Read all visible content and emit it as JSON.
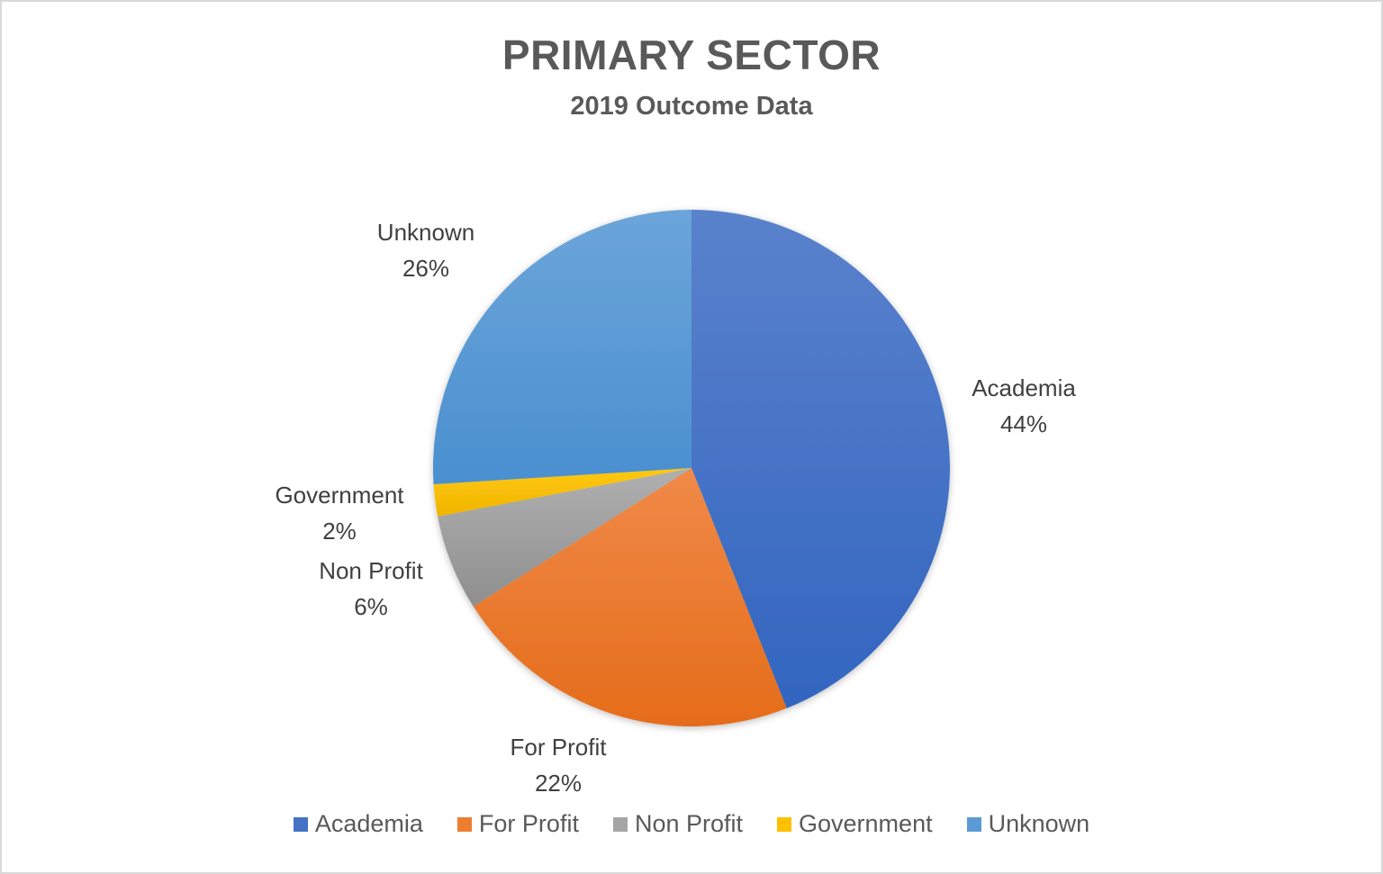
{
  "chart_data": {
    "type": "pie",
    "title": "PRIMARY SECTOR",
    "subtitle": "2019 Outcome Data",
    "categories": [
      "Academia",
      "For Profit",
      "Non Profit",
      "Government",
      "Unknown"
    ],
    "values": [
      44,
      22,
      6,
      2,
      26
    ],
    "value_labels": [
      "44%",
      "22%",
      "6%",
      "2%",
      "26%"
    ],
    "colors": [
      "#4472C4",
      "#ED7D31",
      "#A5A5A5",
      "#FFC000",
      "#5B9BD5"
    ],
    "legend_position": "bottom",
    "start_angle_deg": 0,
    "direction": "clockwise"
  },
  "labels": {
    "academia": {
      "name": "Academia",
      "pct": "44%"
    },
    "for_profit": {
      "name": "For Profit",
      "pct": "22%"
    },
    "non_profit": {
      "name": "Non Profit",
      "pct": "6%"
    },
    "government": {
      "name": "Government",
      "pct": "2%"
    },
    "unknown": {
      "name": "Unknown",
      "pct": "26%"
    }
  },
  "legend": [
    "Academia",
    "For Profit",
    "Non Profit",
    "Government",
    "Unknown"
  ]
}
